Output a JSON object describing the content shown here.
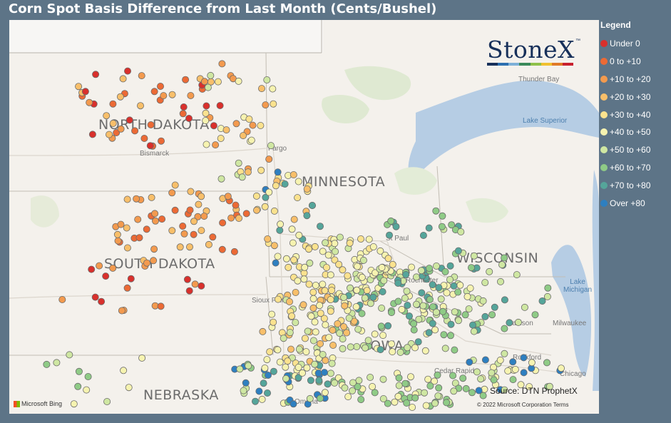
{
  "title": "Corn Spot Basis Difference from Last Month (Cents/Bushel)",
  "legend": {
    "title": "Legend",
    "items": [
      {
        "label": "Under 0",
        "color": "#d9302c"
      },
      {
        "label": "0 to +10",
        "color": "#ec6a35"
      },
      {
        "label": "+10 to +20",
        "color": "#f39a4e"
      },
      {
        "label": "+20 to +30",
        "color": "#f8bf6a"
      },
      {
        "label": "+30 to +40",
        "color": "#fbe28e"
      },
      {
        "label": "+40 to +50",
        "color": "#f6f3b0"
      },
      {
        "label": "+50 to +60",
        "color": "#cfe7a2"
      },
      {
        "label": "+60 to +70",
        "color": "#8fcb86"
      },
      {
        "label": "+70 to +80",
        "color": "#55a59a"
      },
      {
        "label": "Over +80",
        "color": "#2e7fc0"
      }
    ]
  },
  "map": {
    "state_labels": [
      "NORTH DAKOTA",
      "MINNESOTA",
      "SOUTH DAKOTA",
      "WISCONSIN",
      "NEBRASKA",
      "IOWA"
    ],
    "cities": [
      "Bismarck",
      "Fargo",
      "Thunder Bay",
      "St Paul",
      "Rochester",
      "Madison",
      "Milwaukee",
      "Rockford",
      "Chicago",
      "Cedar Rapids",
      "Omaha",
      "Sioux Falls"
    ],
    "water_labels": [
      "Lake Superior",
      "Lake Michigan"
    ],
    "logo": "StoneX",
    "logo_tm": "™",
    "logo_colors": [
      "#17305a",
      "#2c6fb0",
      "#7eb0d8",
      "#3a8a5a",
      "#8fc04a",
      "#f0c030",
      "#e07a28",
      "#c8202e"
    ],
    "source": "Source: DTN ProphetX",
    "copyright": "© 2022 Microsoft Corporation  Terms",
    "attribution": "Microsoft Bing"
  }
}
